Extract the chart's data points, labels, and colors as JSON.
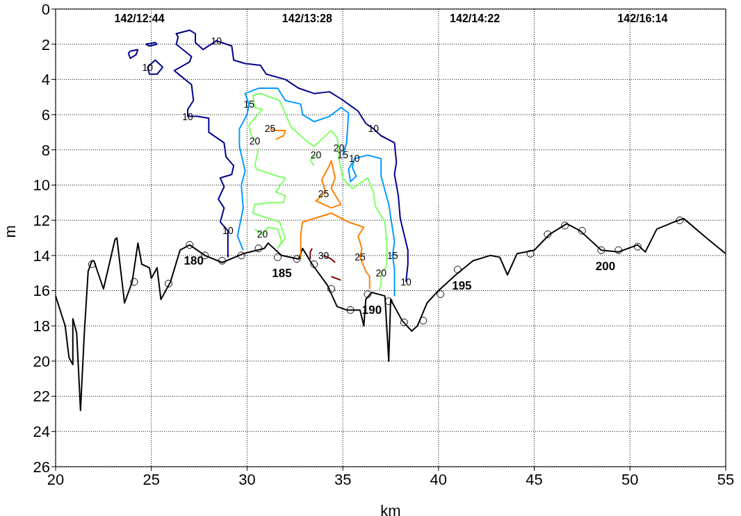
{
  "chart_data": {
    "type": "line",
    "xlabel": "km",
    "ylabel": "m",
    "xlim": [
      20,
      55
    ],
    "ylim": [
      26,
      0
    ],
    "xticks": [
      20,
      25,
      30,
      35,
      40,
      45,
      50,
      55
    ],
    "yticks": [
      0,
      2,
      4,
      6,
      8,
      10,
      12,
      14,
      16,
      18,
      20,
      22,
      24,
      26
    ],
    "grid": true,
    "marker": "none",
    "line_style": "solid",
    "series": [
      {
        "color": "#000000",
        "x": [
          20,
          20.5,
          20.7,
          20.9,
          20.9,
          21.1,
          21.3,
          21.5,
          21.7,
          21.9,
          22.0,
          22.5,
          23.1,
          23.2,
          23.6,
          24.0,
          24.3,
          24.5,
          24.9,
          25.0,
          25.3,
          25.5,
          26.0,
          26.5,
          27.0,
          27.8,
          28.7,
          29.8,
          30.9,
          31.1,
          31.2,
          31.8,
          32.7,
          32.9,
          33.4,
          34.2,
          34.7,
          35.2,
          35.9,
          36.1,
          36.2,
          36.5,
          37.2,
          37.4,
          37.5,
          38.1,
          38.6,
          38.9,
          39.4,
          39.9,
          40.9,
          41.8,
          42.7,
          43.2,
          43.6,
          44.1,
          45.0,
          45.8,
          46.7,
          47.4,
          48.5,
          49.4,
          50.4,
          50.8,
          51.4,
          52.3,
          52.8,
          54.1,
          55
        ],
        "values": [
          16.3,
          18.0,
          19.8,
          20.2,
          17.6,
          18.4,
          22.8,
          18.4,
          14.9,
          14.3,
          14.3,
          15.9,
          13.1,
          13.0,
          16.7,
          15.5,
          13.3,
          14.5,
          14.7,
          15.3,
          14.7,
          16.5,
          15.5,
          13.7,
          13.4,
          14.0,
          14.4,
          13.9,
          13.6,
          13.3,
          13.4,
          14.0,
          14.2,
          13.6,
          14.5,
          15.7,
          16.9,
          17.1,
          17.1,
          18.0,
          16.5,
          16.1,
          16.3,
          20.0,
          16.5,
          17.7,
          18.3,
          18.0,
          16.7,
          16.1,
          15.1,
          14.3,
          14.0,
          14.1,
          15.1,
          13.9,
          13.7,
          12.8,
          12.2,
          12.6,
          13.7,
          13.8,
          13.4,
          13.8,
          12.5,
          12.1,
          11.9,
          13.1,
          13.9
        ]
      },
      {
        "type": "scatter",
        "color": "#000000",
        "marker": "circle",
        "x": [
          21.9,
          24.1,
          25.9,
          27.0,
          27.8,
          28.7,
          29.7,
          30.6,
          31.6,
          32.6,
          33.5,
          34.4,
          35.4,
          36.3,
          37.4,
          38.2,
          39.2,
          40.1,
          41.0,
          44.8,
          45.7,
          46.6,
          47.5,
          48.5,
          49.4,
          50.4,
          52.6
        ],
        "values": [
          14.5,
          15.5,
          15.6,
          13.4,
          14.0,
          14.3,
          14.0,
          13.6,
          14.1,
          14.2,
          14.5,
          15.9,
          17.1,
          16.2,
          16.6,
          17.8,
          17.7,
          16.2,
          14.8,
          13.9,
          12.8,
          12.3,
          12.6,
          13.7,
          13.7,
          13.5,
          12.0
        ]
      },
      {
        "color": "#00008b",
        "x": [
          29.0,
          29.0,
          28.6,
          28.8,
          28.5,
          28.8,
          28.6,
          29.2,
          29.3,
          28.9,
          28.8,
          28.0,
          28.0,
          27.4,
          26.9,
          26.9,
          27.2,
          27.1,
          26.2,
          27.0,
          27.1,
          26.3,
          26.4,
          26.3,
          27.0,
          27.3,
          27.3,
          27.7,
          28.4,
          29.2,
          29.3,
          29.9,
          30.7,
          31.0,
          32.0,
          32.7,
          33.5,
          34.3,
          34.9,
          35.8,
          36.2,
          36.6,
          37.0,
          37.7,
          37.8,
          37.7,
          37.9,
          38.0,
          38.4,
          38.4,
          38.3
        ],
        "values": [
          14.1,
          12.6,
          12.1,
          11.3,
          10.8,
          10.1,
          9.6,
          9.4,
          8.9,
          8.4,
          7.6,
          7.0,
          6.2,
          6.1,
          6.1,
          5.7,
          5.2,
          4.3,
          3.5,
          3.0,
          2.7,
          2.0,
          1.6,
          1.4,
          1.2,
          1.4,
          1.9,
          2.3,
          1.8,
          2.1,
          2.9,
          3.1,
          3.2,
          3.7,
          4.0,
          4.5,
          4.8,
          4.7,
          5.1,
          5.8,
          6.5,
          6.8,
          7.2,
          7.6,
          8.7,
          9.4,
          10.6,
          11.9,
          13.7,
          14.5,
          15.5
        ]
      },
      {
        "color": "#00008b",
        "x": [
          24.7,
          25.2,
          25.3
        ],
        "values": [
          2.0,
          1.9,
          2.0
        ]
      },
      {
        "color": "#00008b",
        "x": [
          24.7,
          24.9,
          25.3
        ],
        "values": [
          2.0,
          2.1,
          2.0
        ]
      },
      {
        "color": "#00008b",
        "x": [
          23.8,
          23.9,
          24.3
        ],
        "values": [
          2.5,
          2.4,
          2.3
        ]
      },
      {
        "color": "#00008b",
        "x": [
          23.8,
          23.9,
          24.2,
          24.3
        ],
        "values": [
          2.5,
          2.8,
          2.6,
          2.3
        ]
      },
      {
        "color": "#00008b",
        "x": [
          24.8,
          24.9,
          25.3,
          25.6
        ],
        "values": [
          3.3,
          3.7,
          3.7,
          3.3
        ]
      },
      {
        "color": "#00008b",
        "x": [
          24.8,
          25.2,
          25.6
        ],
        "values": [
          3.3,
          2.9,
          3.3
        ]
      },
      {
        "color": "#0099ff",
        "x": [
          29.8,
          29.5,
          29.8,
          29.7,
          29.9,
          29.6,
          29.6,
          30.0,
          30.1,
          29.9,
          30.6,
          31.6,
          32.0,
          32.8,
          32.9,
          33.5,
          34.3,
          34.9,
          35.3,
          35.2,
          35.0
        ],
        "values": [
          13.7,
          12.9,
          11.3,
          10.0,
          9.2,
          7.8,
          6.8,
          6.0,
          5.4,
          4.8,
          4.5,
          4.5,
          5.2,
          5.4,
          6.0,
          6.4,
          6.1,
          5.6,
          5.9,
          7.6,
          8.3
        ]
      },
      {
        "color": "#0099ff",
        "x": [
          35.5,
          35.3,
          35.4,
          35.7,
          35.5,
          35.6,
          36.3,
          37.0,
          37.0,
          37.4,
          37.7,
          37.6,
          37.7,
          37.7
        ],
        "values": [
          8.7,
          9.1,
          9.8,
          9.5,
          9.0,
          8.5,
          8.3,
          8.5,
          9.5,
          11.1,
          13.2,
          14.0,
          14.8,
          16.3
        ]
      },
      {
        "color": "#80ff66",
        "x": [
          30.4,
          30.2,
          30.1,
          30.4,
          30.8,
          30.4,
          30.3,
          30.7,
          31.7,
          32.3,
          33.1,
          33.5,
          34.4,
          34.7,
          34.8,
          34.8,
          35.0,
          35.5,
          36.3,
          36.6,
          36.7,
          37.2,
          37.3,
          37.3,
          37.0,
          37.0,
          36.9
        ],
        "values": [
          7.5,
          7.1,
          6.6,
          6.2,
          5.7,
          5.6,
          4.9,
          4.8,
          5.2,
          6.7,
          7.5,
          7.8,
          6.9,
          7.3,
          7.9,
          8.5,
          9.6,
          10.2,
          9.6,
          10.4,
          11.2,
          12.1,
          13.3,
          14.6,
          15.0,
          15.6,
          16.0
        ]
      },
      {
        "color": "#80ff66",
        "x": [
          30.6,
          30.4,
          30.5,
          31.6,
          32.0,
          31.5,
          32.0,
          31.9,
          31.3,
          30.4,
          30.3,
          31.7,
          32.0,
          31.6
        ],
        "values": [
          7.9,
          8.9,
          9.1,
          9.5,
          9.6,
          10.4,
          10.6,
          11.0,
          11.0,
          11.1,
          11.6,
          12.1,
          13.0,
          13.6
        ]
      },
      {
        "color": "#80ff66",
        "x": [
          30.4,
          30.8,
          31.1,
          31.6,
          31.8,
          31.6
        ],
        "values": [
          12.5,
          12.8,
          12.4,
          12.5,
          13.2,
          13.6
        ]
      },
      {
        "color": "#80ff66",
        "x": [
          33.6,
          33.3,
          33.5
        ],
        "values": [
          8.3,
          8.6,
          8.9
        ]
      },
      {
        "color": "#ff8000",
        "x": [
          31.2,
          31.5,
          32.0,
          31.9,
          31.5
        ],
        "values": [
          6.8,
          6.9,
          6.9,
          7.2,
          7.4
        ]
      },
      {
        "color": "#ff8000",
        "x": [
          34.4,
          34.6,
          34.4,
          34.9,
          34.4
        ],
        "values": [
          8.6,
          9.6,
          10.2,
          11.1,
          11.3
        ]
      },
      {
        "color": "#ff8000",
        "x": [
          34.4,
          34.3,
          33.9,
          34.1,
          34.0,
          33.6,
          34.4
        ],
        "values": [
          8.6,
          8.9,
          9.7,
          10.4,
          10.5,
          10.9,
          11.3
        ]
      },
      {
        "color": "#ff8000",
        "x": [
          32.8,
          32.8,
          32.9,
          34.4,
          35.3,
          36.1,
          35.8,
          36.0,
          35.9,
          36.2,
          36.4,
          36.4
        ],
        "values": [
          14.2,
          12.8,
          12.1,
          11.6,
          12.1,
          12.4,
          12.9,
          13.6,
          14.1,
          14.9,
          15.2,
          15.9
        ]
      },
      {
        "color": "#800000",
        "x": [
          33.4,
          33.3,
          33.3
        ],
        "values": [
          13.6,
          13.8,
          14.2
        ]
      },
      {
        "color": "#800000",
        "x": [
          34.0,
          34.4,
          34.6
        ],
        "values": [
          14.0,
          14.2,
          14.4
        ]
      },
      {
        "color": "#800000",
        "x": [
          34.4,
          34.9
        ],
        "values": [
          15.2,
          15.4
        ]
      }
    ],
    "annotations": [
      "142/12:44",
      "142/13:28",
      "142/14:22",
      "142/16:14",
      {
        "text": "180",
        "x": 27.0,
        "y": 13.4
      },
      {
        "text": "185",
        "x": 31.6,
        "y": 14.1
      },
      {
        "text": "190",
        "x": 36.3,
        "y": 16.2
      },
      {
        "text": "195",
        "x": 41.0,
        "y": 14.8
      },
      {
        "text": "200",
        "x": 48.5,
        "y": 13.7
      },
      {
        "text": "10",
        "x": 28.4,
        "y": 1.8
      },
      {
        "text": "10",
        "x": 24.8,
        "y": 3.3
      },
      {
        "text": "10",
        "x": 26.9,
        "y": 6.1
      },
      {
        "text": "10",
        "x": 29.0,
        "y": 12.6
      },
      {
        "text": "10",
        "x": 36.6,
        "y": 6.8
      },
      {
        "text": "10",
        "x": 35.6,
        "y": 8.5
      },
      {
        "text": "10",
        "x": 38.3,
        "y": 15.5
      },
      {
        "text": "15",
        "x": 30.1,
        "y": 5.4
      },
      {
        "text": "15",
        "x": 35.0,
        "y": 8.3
      },
      {
        "text": "15",
        "x": 37.6,
        "y": 14.0
      },
      {
        "text": "20",
        "x": 30.4,
        "y": 7.5
      },
      {
        "text": "20",
        "x": 33.6,
        "y": 8.3
      },
      {
        "text": "20",
        "x": 34.8,
        "y": 7.9
      },
      {
        "text": "20",
        "x": 30.8,
        "y": 12.8
      },
      {
        "text": "20",
        "x": 37.0,
        "y": 15.0
      },
      {
        "text": "25",
        "x": 31.2,
        "y": 6.8
      },
      {
        "text": "25",
        "x": 34.0,
        "y": 10.5
      },
      {
        "text": "25",
        "x": 35.9,
        "y": 14.1
      },
      {
        "text": "30",
        "x": 34.0,
        "y": 14.0
      }
    ]
  }
}
